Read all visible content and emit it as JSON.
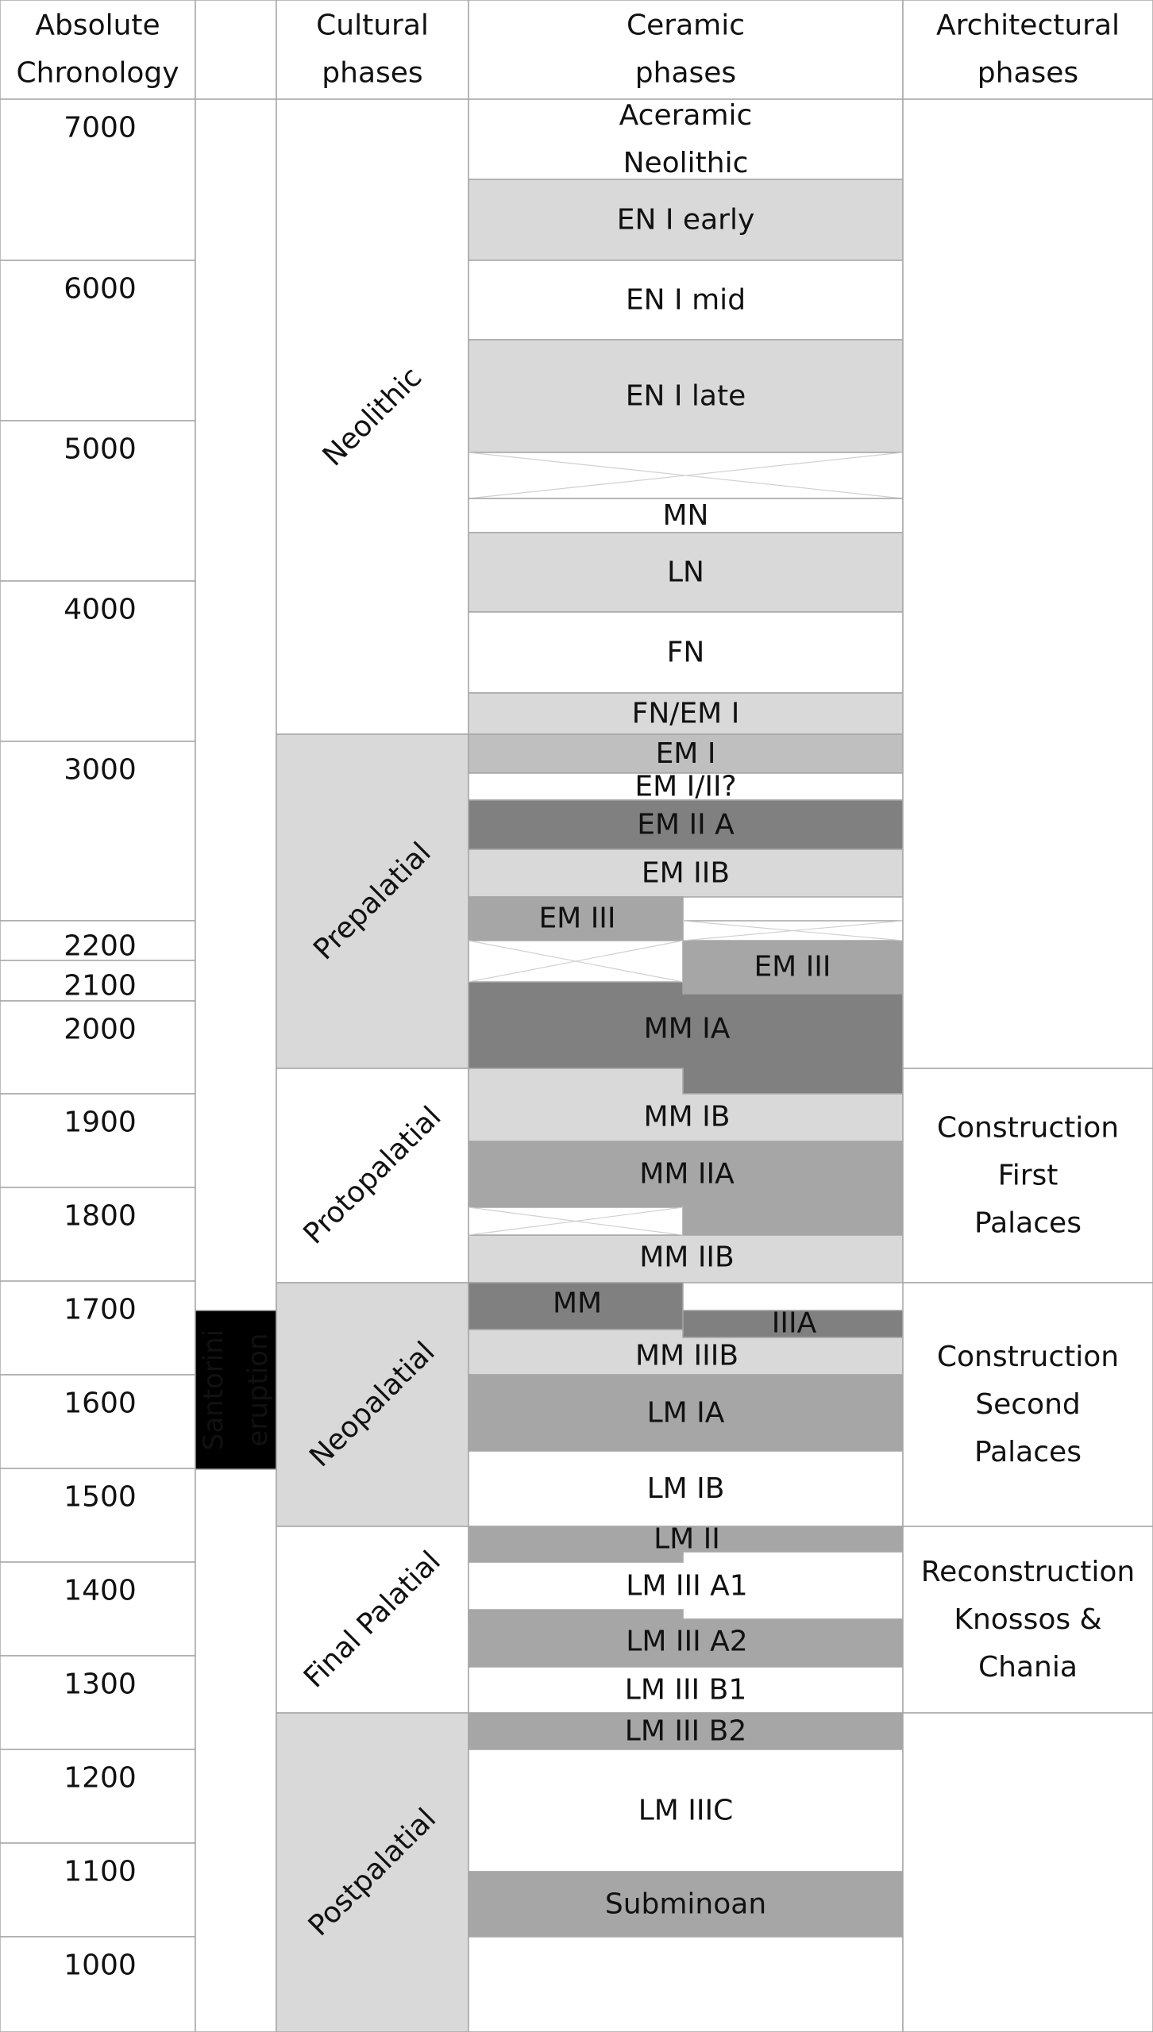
{
  "headers": {
    "absolute": [
      "Absolute",
      "Chronology"
    ],
    "cultural": [
      "Cultural",
      "phases"
    ],
    "ceramic": [
      "Ceramic",
      "phases"
    ],
    "architectural": [
      "Architectural",
      "phases"
    ]
  },
  "colors": {
    "white": "#ffffff",
    "light": "#d9d9d9",
    "mid": "#bfbfbf",
    "medium": "#a6a6a6",
    "dark": "#808080",
    "eruption": "#000000",
    "border": "#a6a6a6"
  },
  "chronology": [
    {
      "year": "7000"
    },
    {
      "year": "6000"
    },
    {
      "year": "5000"
    },
    {
      "year": "4000"
    },
    {
      "year": "3000"
    },
    {
      "year": "2200"
    },
    {
      "year": "2100"
    },
    {
      "year": "2000"
    },
    {
      "year": "1900"
    },
    {
      "year": "1800"
    },
    {
      "year": "1700"
    },
    {
      "year": "1600"
    },
    {
      "year": "1500"
    },
    {
      "year": "1400"
    },
    {
      "year": "1300"
    },
    {
      "year": "1200"
    },
    {
      "year": "1100"
    },
    {
      "year": "1000"
    }
  ],
  "eruption": {
    "label": [
      "Santorini",
      "eruption"
    ]
  },
  "cultural_phases": [
    {
      "name": "Neolithic",
      "shade": "white"
    },
    {
      "name": "Prepalatial",
      "shade": "light"
    },
    {
      "name": "Protopalatial",
      "shade": "white"
    },
    {
      "name": "Neopalatial",
      "shade": "light"
    },
    {
      "name": "Final Palatial",
      "shade": "white"
    },
    {
      "name": "Postpalatial",
      "shade": "light"
    }
  ],
  "ceramic_phases": [
    {
      "label": [
        "Aceramic",
        "Neolithic"
      ],
      "shade": "white"
    },
    {
      "label": [
        "EN I early"
      ],
      "shade": "light"
    },
    {
      "label": [
        "EN I mid"
      ],
      "shade": "white"
    },
    {
      "label": [
        "EN I late"
      ],
      "shade": "light"
    },
    {
      "label": [],
      "shade": "gap"
    },
    {
      "label": [
        "MN"
      ],
      "shade": "white"
    },
    {
      "label": [
        "LN"
      ],
      "shade": "light"
    },
    {
      "label": [
        "FN"
      ],
      "shade": "white"
    },
    {
      "label": [
        "FN/EM I"
      ],
      "shade": "light"
    },
    {
      "label": [
        "EM I"
      ],
      "shade": "mid"
    },
    {
      "label": [
        "EM I/II?"
      ],
      "shade": "white"
    },
    {
      "label": [
        "EM II A"
      ],
      "shade": "dark"
    },
    {
      "label": [
        "EM IIB"
      ],
      "shade": "light"
    },
    {
      "label": [
        "EM III"
      ],
      "shade": "medium"
    },
    {
      "label": [
        "EM III"
      ],
      "shade": "medium"
    },
    {
      "label": [
        "MM IA"
      ],
      "shade": "dark"
    },
    {
      "label": [
        "MM IB"
      ],
      "shade": "light"
    },
    {
      "label": [
        "MM IIA"
      ],
      "shade": "medium"
    },
    {
      "label": [
        "MM IIB"
      ],
      "shade": "light"
    },
    {
      "label": [
        "MM"
      ],
      "shade": "dark"
    },
    {
      "label": [
        "IIIA"
      ],
      "shade": "dark"
    },
    {
      "label": [
        "MM IIIB"
      ],
      "shade": "light"
    },
    {
      "label": [
        "LM IA"
      ],
      "shade": "medium"
    },
    {
      "label": [
        "LM IB"
      ],
      "shade": "white"
    },
    {
      "label": [
        "LM II"
      ],
      "shade": "medium"
    },
    {
      "label": [
        "LM III A1"
      ],
      "shade": "white"
    },
    {
      "label": [
        "LM III A2"
      ],
      "shade": "medium"
    },
    {
      "label": [
        "LM III B1"
      ],
      "shade": "white"
    },
    {
      "label": [
        "LM III B2"
      ],
      "shade": "medium"
    },
    {
      "label": [
        "LM IIIC"
      ],
      "shade": "white"
    },
    {
      "label": [
        "Subminoan"
      ],
      "shade": "medium"
    }
  ],
  "architectural_phases": [
    {
      "label": [
        "Construction",
        "First",
        "Palaces"
      ]
    },
    {
      "label": [
        "Construction",
        "Second",
        "Palaces"
      ]
    },
    {
      "label": [
        "Reconstruction",
        "Knossos &",
        "Chania"
      ]
    }
  ]
}
